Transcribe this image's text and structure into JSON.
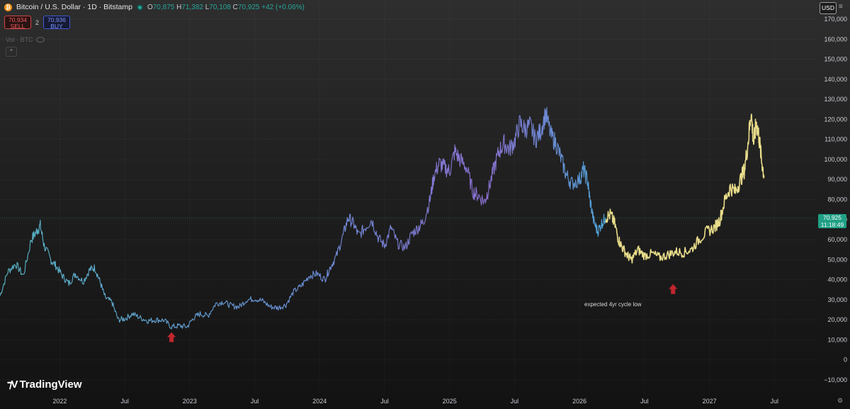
{
  "header": {
    "coin_icon": "bitcoin-icon",
    "title": "Bitcoin / U.S. Dollar · 1D · Bitstamp",
    "ohlc": {
      "o_label": "O",
      "o": "70,875",
      "h_label": "H",
      "h": "71,382",
      "l_label": "L",
      "l": "70,108",
      "c_label": "C",
      "c": "70,925",
      "change": "+42 (+0.06%)"
    }
  },
  "trade": {
    "sell_value": "70,934",
    "sell_label": "SELL",
    "spread": "2",
    "buy_value": "70,936",
    "buy_label": "BUY"
  },
  "indicator": {
    "label": "Vol · BTC"
  },
  "currency": "USD",
  "price_tag": {
    "price": "70,925",
    "countdown": "11:18:49"
  },
  "annotation": "expected 4yr cycle low",
  "branding": {
    "name": "TradingView"
  },
  "colors": {
    "actual": "#5aa7cf",
    "projection": "#e8dc8a",
    "arrow": "#c0262d",
    "price_line": "#1fa085"
  },
  "chart_data": {
    "type": "line",
    "y_ticks": [
      "170,000",
      "160,000",
      "150,000",
      "140,000",
      "130,000",
      "120,000",
      "110,000",
      "100,000",
      "90,000",
      "80,000",
      "70,000",
      "60,000",
      "50,000",
      "40,000",
      "30,000",
      "20,000",
      "10,000",
      "0",
      "−10,000"
    ],
    "ylim": [
      -10000,
      172000
    ],
    "x_ticks": [
      {
        "label": "2022",
        "x": 2022.0
      },
      {
        "label": "Jul",
        "x": 2022.5
      },
      {
        "label": "2023",
        "x": 2023.0
      },
      {
        "label": "Jul",
        "x": 2023.5
      },
      {
        "label": "2024",
        "x": 2024.0
      },
      {
        "label": "Jul",
        "x": 2024.5
      },
      {
        "label": "2025",
        "x": 2025.0
      },
      {
        "label": "Jul",
        "x": 2025.5
      },
      {
        "label": "2026",
        "x": 2026.0
      },
      {
        "label": "Jul",
        "x": 2026.5
      },
      {
        "label": "2027",
        "x": 2027.0
      },
      {
        "label": "Jul",
        "x": 2027.5
      }
    ],
    "xlim": [
      2021.54,
      2027.82
    ],
    "current_price": 70925,
    "series": [
      {
        "role": "actual",
        "points": [
          [
            2021.54,
            32000
          ],
          [
            2021.6,
            44000
          ],
          [
            2021.66,
            48000
          ],
          [
            2021.72,
            42000
          ],
          [
            2021.78,
            60000
          ],
          [
            2021.82,
            64000
          ],
          [
            2021.85,
            67000
          ],
          [
            2021.88,
            57000
          ],
          [
            2021.93,
            50000
          ],
          [
            2021.97,
            47000
          ],
          [
            2022.02,
            42000
          ],
          [
            2022.07,
            38000
          ],
          [
            2022.12,
            43000
          ],
          [
            2022.18,
            39000
          ],
          [
            2022.23,
            45000
          ],
          [
            2022.27,
            46000
          ],
          [
            2022.31,
            39000
          ],
          [
            2022.35,
            31000
          ],
          [
            2022.4,
            29000
          ],
          [
            2022.45,
            20000
          ],
          [
            2022.5,
            20500
          ],
          [
            2022.56,
            23000
          ],
          [
            2022.62,
            21000
          ],
          [
            2022.68,
            19500
          ],
          [
            2022.74,
            20000
          ],
          [
            2022.8,
            19800
          ],
          [
            2022.86,
            16500
          ],
          [
            2022.92,
            17000
          ],
          [
            2022.98,
            16500
          ],
          [
            2023.03,
            21000
          ],
          [
            2023.08,
            23000
          ],
          [
            2023.14,
            22000
          ],
          [
            2023.2,
            28000
          ],
          [
            2023.26,
            29000
          ],
          [
            2023.32,
            27000
          ],
          [
            2023.38,
            26500
          ],
          [
            2023.44,
            30000
          ],
          [
            2023.5,
            30500
          ],
          [
            2023.56,
            29500
          ],
          [
            2023.62,
            26500
          ],
          [
            2023.68,
            26000
          ],
          [
            2023.74,
            27500
          ],
          [
            2023.8,
            34000
          ],
          [
            2023.86,
            37000
          ],
          [
            2023.92,
            42000
          ],
          [
            2023.98,
            43000
          ],
          [
            2024.04,
            40000
          ],
          [
            2024.08,
            46000
          ],
          [
            2024.13,
            52000
          ],
          [
            2024.18,
            62000
          ],
          [
            2024.22,
            71000
          ],
          [
            2024.26,
            68000
          ],
          [
            2024.3,
            62000
          ],
          [
            2024.35,
            66000
          ],
          [
            2024.4,
            70000
          ],
          [
            2024.45,
            61000
          ],
          [
            2024.5,
            57000
          ],
          [
            2024.55,
            66000
          ],
          [
            2024.6,
            58000
          ],
          [
            2024.66,
            56000
          ],
          [
            2024.71,
            63000
          ],
          [
            2024.76,
            66000
          ],
          [
            2024.8,
            69000
          ],
          [
            2024.85,
            80000
          ],
          [
            2024.88,
            92000
          ],
          [
            2024.92,
            98000
          ],
          [
            2024.96,
            96000
          ],
          [
            2025.0,
            94000
          ],
          [
            2025.04,
            104000
          ],
          [
            2025.08,
            100000
          ],
          [
            2025.13,
            96000
          ],
          [
            2025.18,
            84000
          ],
          [
            2025.22,
            82000
          ],
          [
            2025.27,
            79000
          ],
          [
            2025.3,
            85000
          ],
          [
            2025.34,
            95000
          ],
          [
            2025.38,
            104000
          ],
          [
            2025.42,
            108000
          ],
          [
            2025.46,
            105000
          ],
          [
            2025.5,
            109000
          ],
          [
            2025.54,
            118000
          ],
          [
            2025.58,
            115000
          ],
          [
            2025.62,
            117000
          ],
          [
            2025.66,
            110000
          ],
          [
            2025.7,
            114000
          ],
          [
            2025.74,
            123000
          ],
          [
            2025.78,
            112000
          ],
          [
            2025.82,
            108000
          ],
          [
            2025.86,
            100000
          ],
          [
            2025.9,
            92000
          ],
          [
            2025.94,
            88000
          ],
          [
            2026.0,
            90000
          ],
          [
            2026.03,
            95000
          ],
          [
            2026.06,
            90000
          ],
          [
            2026.08,
            80000
          ],
          [
            2026.11,
            69000
          ],
          [
            2026.14,
            64000
          ],
          [
            2026.17,
            68000
          ],
          [
            2026.2,
            71000
          ]
        ]
      },
      {
        "role": "projection",
        "points": [
          [
            2026.2,
            71000
          ],
          [
            2026.24,
            72500
          ],
          [
            2026.27,
            68000
          ],
          [
            2026.3,
            60000
          ],
          [
            2026.33,
            56000
          ],
          [
            2026.37,
            52000
          ],
          [
            2026.4,
            50000
          ],
          [
            2026.45,
            55000
          ],
          [
            2026.5,
            52000
          ],
          [
            2026.56,
            53000
          ],
          [
            2026.62,
            51000
          ],
          [
            2026.68,
            52500
          ],
          [
            2026.74,
            54000
          ],
          [
            2026.8,
            53500
          ],
          [
            2026.86,
            55000
          ],
          [
            2026.92,
            60000
          ],
          [
            2026.98,
            64000
          ],
          [
            2027.04,
            66000
          ],
          [
            2027.08,
            70000
          ],
          [
            2027.12,
            80000
          ],
          [
            2027.16,
            86000
          ],
          [
            2027.2,
            84000
          ],
          [
            2027.24,
            90000
          ],
          [
            2027.27,
            95000
          ],
          [
            2027.3,
            110000
          ],
          [
            2027.32,
            124000
          ],
          [
            2027.34,
            108000
          ],
          [
            2027.36,
            118000
          ],
          [
            2027.38,
            112000
          ],
          [
            2027.4,
            100000
          ],
          [
            2027.42,
            92000
          ]
        ]
      }
    ],
    "arrows": [
      {
        "x": 2022.86,
        "y": 11000
      },
      {
        "x": 2026.72,
        "y": 35000
      }
    ]
  }
}
